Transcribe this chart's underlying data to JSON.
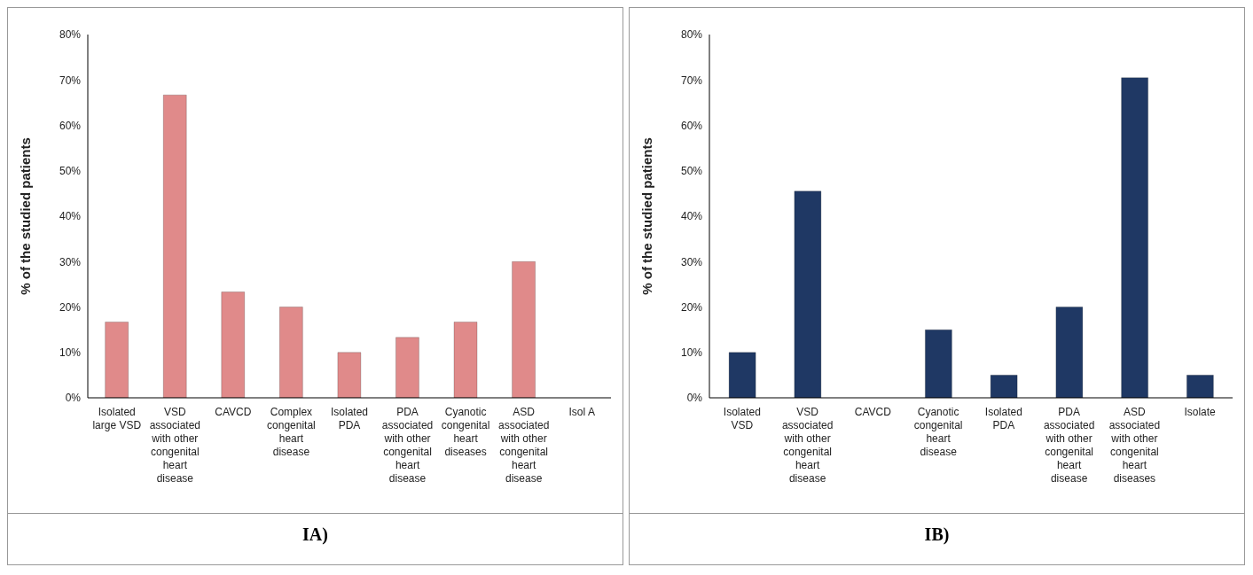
{
  "chart_data": [
    {
      "type": "bar",
      "title": "IA)",
      "ylabel": "% of the studied patients",
      "categories": [
        "Isolated large VSD",
        "VSD associated with other congenital heart disease",
        "CAVCD",
        "Complex congenital heart disease",
        "Isolated PDA",
        "PDA associated with other congenital heart disease",
        "Cyanotic congenital heart diseases",
        "ASD associated with other congenital heart disease",
        "Isol A"
      ],
      "values": [
        16.7,
        66.7,
        23.3,
        20,
        10,
        13.3,
        16.7,
        30,
        null
      ],
      "color": "#e08a8a",
      "ylim": [
        0,
        80
      ],
      "yticks": [
        {
          "value": 0,
          "label": "0%"
        },
        {
          "value": 10,
          "label": "10%"
        },
        {
          "value": 20,
          "label": "20%"
        },
        {
          "value": 30,
          "label": "30%"
        },
        {
          "value": 40,
          "label": "40%"
        },
        {
          "value": 50,
          "label": "50%"
        },
        {
          "value": 60,
          "label": "60%"
        },
        {
          "value": 70,
          "label": "70%"
        },
        {
          "value": 80,
          "label": "80%"
        }
      ],
      "grid": false,
      "legend": false
    },
    {
      "type": "bar",
      "title": "IB)",
      "ylabel": "% of the studied patients",
      "categories": [
        "Isolated VSD",
        "VSD associated with other congenital heart disease",
        "CAVCD",
        "Cyanotic congenital heart disease",
        "Isolated PDA",
        "PDA associated with other congenital heart disease",
        "ASD associated with other congenital heart diseases",
        "Isolate"
      ],
      "values": [
        10,
        45.5,
        0,
        15,
        5,
        20,
        70.5,
        5
      ],
      "color": "#1f3864",
      "ylim": [
        0,
        80
      ],
      "yticks": [
        {
          "value": 0,
          "label": "0%"
        },
        {
          "value": 10,
          "label": "10%"
        },
        {
          "value": 20,
          "label": "20%"
        },
        {
          "value": 30,
          "label": "30%"
        },
        {
          "value": 40,
          "label": "40%"
        },
        {
          "value": 50,
          "label": "50%"
        },
        {
          "value": 60,
          "label": "60%"
        },
        {
          "value": 70,
          "label": "70%"
        },
        {
          "value": 80,
          "label": "80%"
        }
      ],
      "grid": false,
      "legend": false
    }
  ]
}
